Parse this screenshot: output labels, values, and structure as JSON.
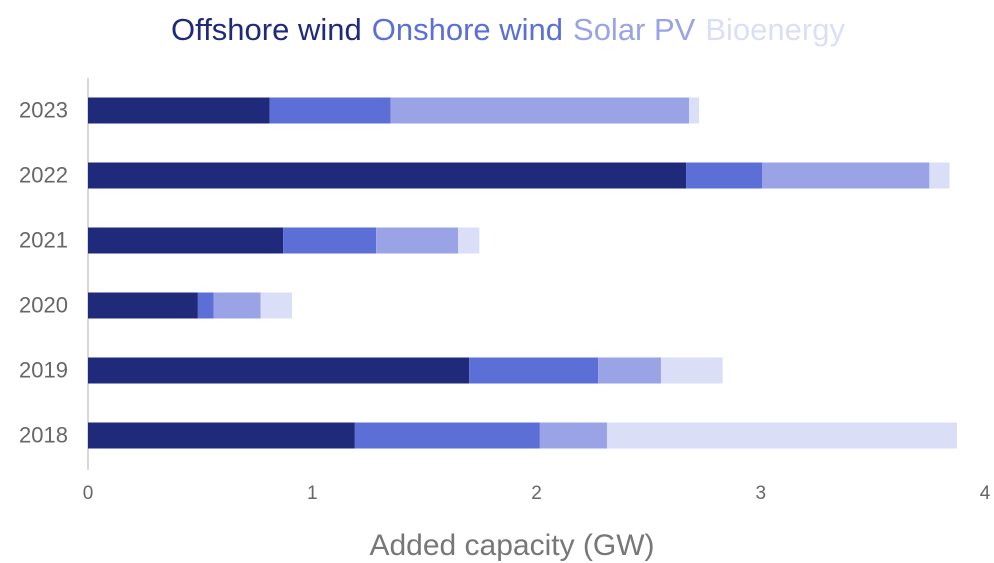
{
  "chart_data": {
    "type": "bar",
    "orientation": "horizontal",
    "stacked": true,
    "x_label": "Added capacity (GW)",
    "categories": [
      "2023",
      "2022",
      "2021",
      "2020",
      "2019",
      "2018"
    ],
    "series": [
      {
        "name": "Offshore wind",
        "color": "#1f2a7a",
        "values": [
          0.81,
          2.667,
          0.87,
          0.49,
          1.7,
          1.19
        ]
      },
      {
        "name": "Onshore wind",
        "color": "#5b6fd6",
        "values": [
          0.54,
          0.34,
          0.415,
          0.07,
          0.575,
          0.825
        ]
      },
      {
        "name": "Solar PV",
        "color": "#9aa3e6",
        "values": [
          1.33,
          0.745,
          0.365,
          0.21,
          0.28,
          0.3
        ]
      },
      {
        "name": "Bioenergy",
        "color": "#dadff7",
        "values": [
          0.045,
          0.09,
          0.095,
          0.14,
          0.275,
          1.56
        ]
      }
    ],
    "xlim": [
      0,
      4
    ],
    "xticks": [
      0,
      1,
      2,
      3,
      4
    ],
    "legend": "top"
  }
}
